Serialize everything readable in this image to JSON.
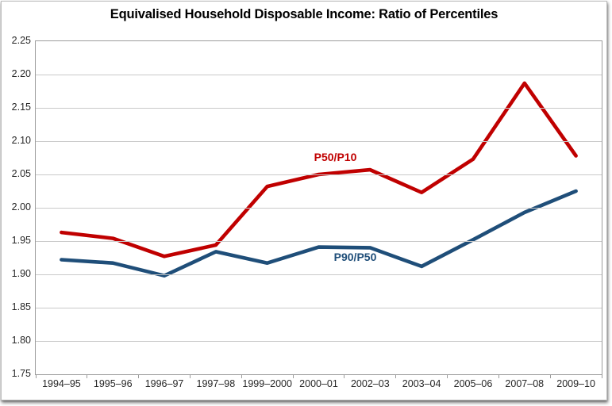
{
  "chart_data": {
    "type": "line",
    "title": "Equivalised Household Disposable Income: Ratio of Percentiles",
    "categories": [
      "1994–95",
      "1995–96",
      "1996–97",
      "1997–98",
      "1999–2000",
      "2000–01",
      "2002–03",
      "2003–04",
      "2005–06",
      "2007–08",
      "2009–10"
    ],
    "yticks": [
      "2.25",
      "2.20",
      "2.15",
      "2.10",
      "2.05",
      "2.00",
      "1.95",
      "1.90",
      "1.85",
      "1.80",
      "1.75"
    ],
    "ylim": [
      1.75,
      2.25
    ],
    "grid": true,
    "legend_position": "inline-series-labels",
    "series": [
      {
        "name": "P50/P10",
        "color": "#C00000",
        "values": [
          1.963,
          1.954,
          1.927,
          1.944,
          2.032,
          2.05,
          2.057,
          2.023,
          2.073,
          2.187,
          2.078
        ]
      },
      {
        "name": "P90/P50",
        "color": "#1F4E79",
        "values": [
          1.922,
          1.917,
          1.898,
          1.934,
          1.917,
          1.941,
          1.94,
          1.912,
          1.952,
          1.993,
          2.025
        ]
      }
    ],
    "grid_color": "#C9C9C9",
    "axis_color": "#9C9C9C",
    "tick_label_color": "#262626"
  }
}
